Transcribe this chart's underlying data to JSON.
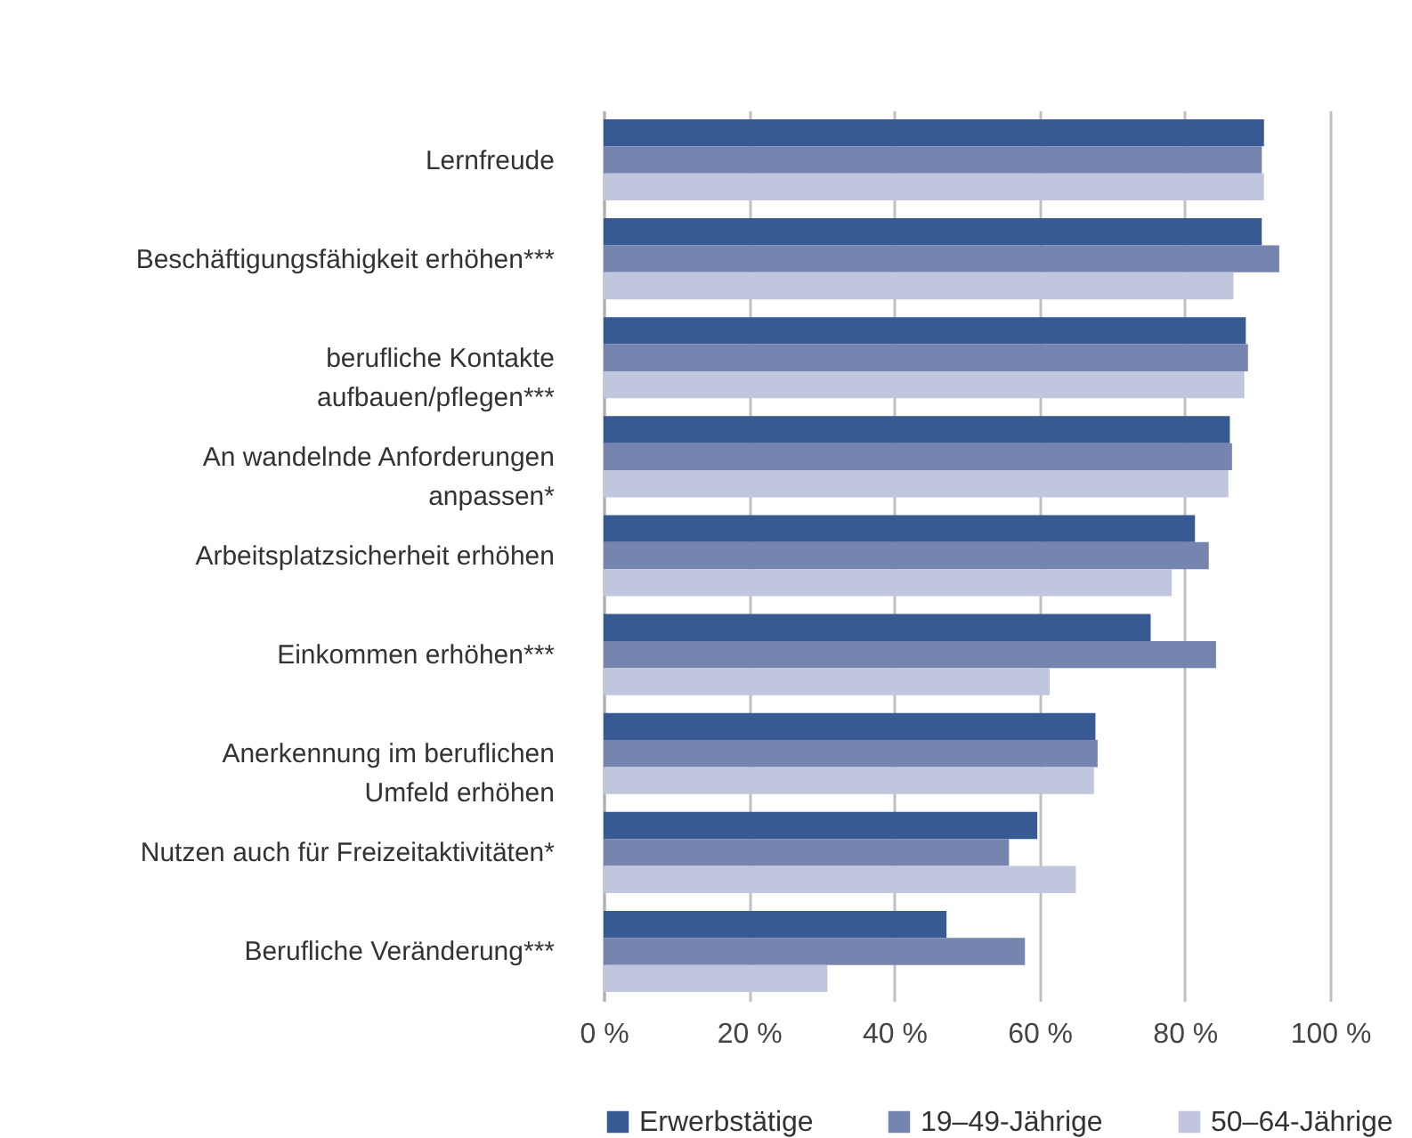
{
  "chart_data": {
    "type": "bar",
    "orientation": "horizontal",
    "categories": [
      "Lernfreude",
      "Beschäftigungsfähigkeit erhöhen***",
      "berufliche Kontakte\naufbauen/pflegen***",
      "An wandelnde Anforderungen\nanpassen*",
      "Arbeitsplatzsicherheit erhöhen",
      "Einkommen erhöhen***",
      "Anerkennung im beruflichen\nUmfeld erhöhen",
      "Nutzen auch für Freizeitaktivitäten*",
      "Berufliche Veränderung***"
    ],
    "series": [
      {
        "name": "Erwerbstätige",
        "color": "#365a91",
        "values": [
          90.9,
          90.6,
          88.4,
          86.2,
          81.4,
          75.3,
          67.7,
          59.7,
          47.2
        ]
      },
      {
        "name": "19–49-Jährige",
        "color": "#7684b0",
        "values": [
          90.6,
          93.0,
          88.7,
          86.5,
          83.3,
          84.3,
          68.0,
          55.8,
          58.0
        ]
      },
      {
        "name": "50–64-Jährige",
        "color": "#c0c6de",
        "values": [
          90.9,
          86.7,
          88.2,
          86.0,
          78.2,
          61.4,
          67.5,
          65.0,
          30.8
        ]
      }
    ],
    "xlim": [
      0,
      100
    ],
    "xticks": [
      {
        "value": 0,
        "label": "0 %"
      },
      {
        "value": 20,
        "label": "20 %"
      },
      {
        "value": 40,
        "label": "40 %"
      },
      {
        "value": 60,
        "label": "60 %"
      },
      {
        "value": 80,
        "label": "80 %"
      },
      {
        "value": 100,
        "label": "100 %"
      }
    ],
    "grid": "x",
    "legend": "bottom"
  }
}
